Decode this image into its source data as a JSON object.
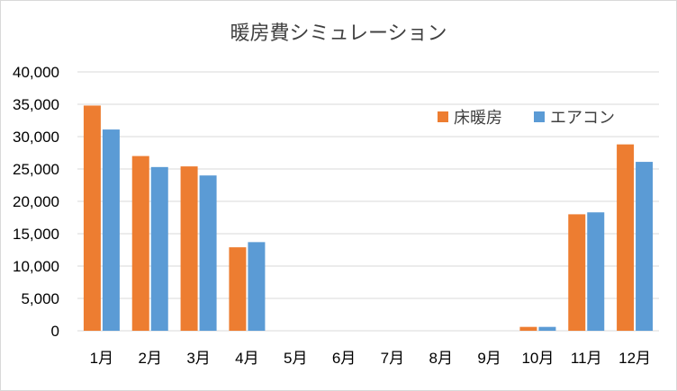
{
  "chart_data": {
    "type": "bar",
    "title": "暖房費シミュレーション",
    "xlabel": "",
    "ylabel": "",
    "categories": [
      "1月",
      "2月",
      "3月",
      "4月",
      "5月",
      "6月",
      "7月",
      "8月",
      "9月",
      "10月",
      "11月",
      "12月"
    ],
    "series": [
      {
        "name": "床暖房",
        "color": "#ED7D31",
        "values": [
          34800,
          27000,
          25400,
          12900,
          0,
          0,
          0,
          0,
          0,
          600,
          18000,
          28800
        ]
      },
      {
        "name": "エアコン",
        "color": "#5B9BD5",
        "values": [
          31100,
          25300,
          24000,
          13700,
          0,
          0,
          0,
          0,
          0,
          600,
          18300,
          26100
        ]
      }
    ],
    "ylim": [
      0,
      40000
    ],
    "yticks": [
      "0",
      "5,000",
      "10,000",
      "15,000",
      "20,000",
      "25,000",
      "30,000",
      "35,000",
      "40,000"
    ],
    "grid": true,
    "legend_position": "top-right"
  }
}
